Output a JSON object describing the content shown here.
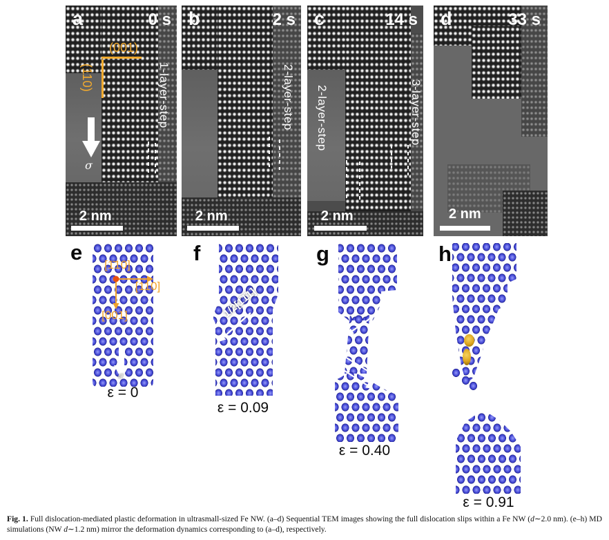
{
  "figure": {
    "panels_tem": [
      {
        "letter": "a",
        "time": "0 s",
        "scalebar": "2 nm",
        "plane_horizontal": "(001)",
        "plane_vertical": "(110)",
        "stress": "σ",
        "step_label": "1-layer-step"
      },
      {
        "letter": "b",
        "time": "2 s",
        "scalebar": "2 nm",
        "step_label": "2-layer-step"
      },
      {
        "letter": "c",
        "time": "14 s",
        "scalebar": "2 nm",
        "step_label_left": "2-layer-step",
        "step_label_right": "3-layer-step"
      },
      {
        "letter": "d",
        "time": "33 s",
        "scalebar": "2 nm"
      }
    ],
    "panels_md": [
      {
        "letter": "e",
        "strain": "ε = 0",
        "axis_up": "[1̄10]",
        "axis_right": "[110]",
        "axis_down": "[001]",
        "stress": "σ"
      },
      {
        "letter": "f",
        "strain": "ε = 0.09",
        "slip_vector": "1/2[1̄1̄1]"
      },
      {
        "letter": "g",
        "strain": "ε = 0.40"
      },
      {
        "letter": "h",
        "strain": "ε = 0.91"
      }
    ],
    "caption_label": "Fig. 1.",
    "caption_parts": [
      {
        "t": "Full dislocation-mediated plastic deformation in ultrasmall-sized Fe NW. (a–d) Sequential TEM images showing the full dislocation slips within a Fe NW ("
      },
      {
        "t": "d",
        "i": true
      },
      {
        "t": "∼2.0 nm). (e–h) MD simulations (NW "
      },
      {
        "t": "d",
        "i": true
      },
      {
        "t": "∼1.2 nm) mirror the deformation dynamics corresponding to (a–d), respectively."
      }
    ],
    "colors": {
      "atom_blue": "#4b50d8",
      "gold_atom": "#d9a31c",
      "annotation_yellow": "#f2aa2e",
      "axis_orange": "#f2a32a",
      "origin_dot": "#e8500f",
      "tem_background": "#4c4c4c"
    }
  }
}
